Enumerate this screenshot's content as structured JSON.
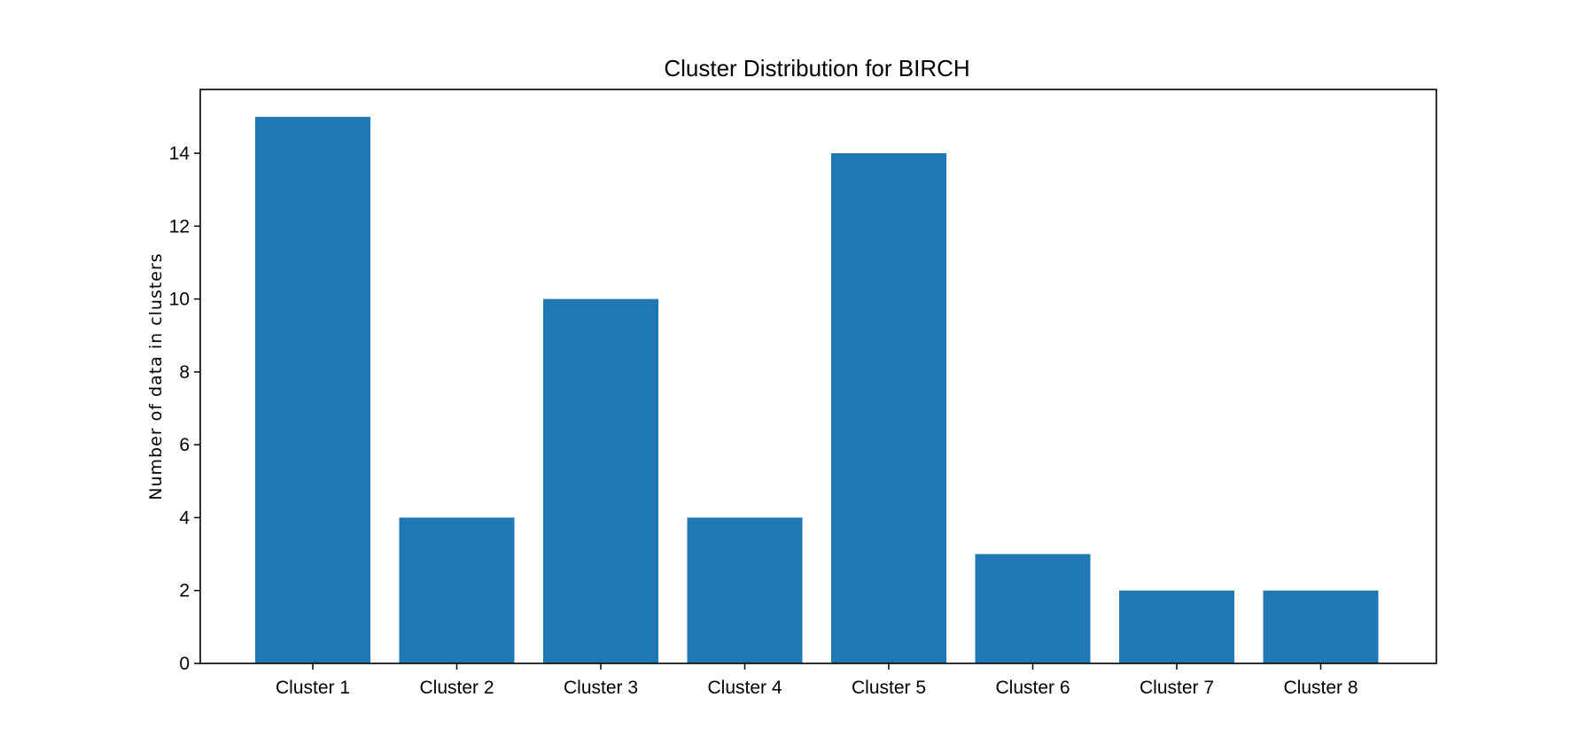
{
  "chart_data": {
    "type": "bar",
    "title": "Cluster Distribution for BIRCH",
    "xlabel": "",
    "ylabel": "Number of data in clusters",
    "categories": [
      "Cluster 1",
      "Cluster 2",
      "Cluster 3",
      "Cluster 4",
      "Cluster 5",
      "Cluster 6",
      "Cluster 7",
      "Cluster 8"
    ],
    "values": [
      15,
      4,
      10,
      4,
      14,
      3,
      2,
      2
    ],
    "ylim": [
      0,
      15.75
    ],
    "yticks": [
      0,
      2,
      4,
      6,
      8,
      10,
      12,
      14
    ],
    "grid": false,
    "legend": "none",
    "bar_color": "#1f77b4"
  }
}
